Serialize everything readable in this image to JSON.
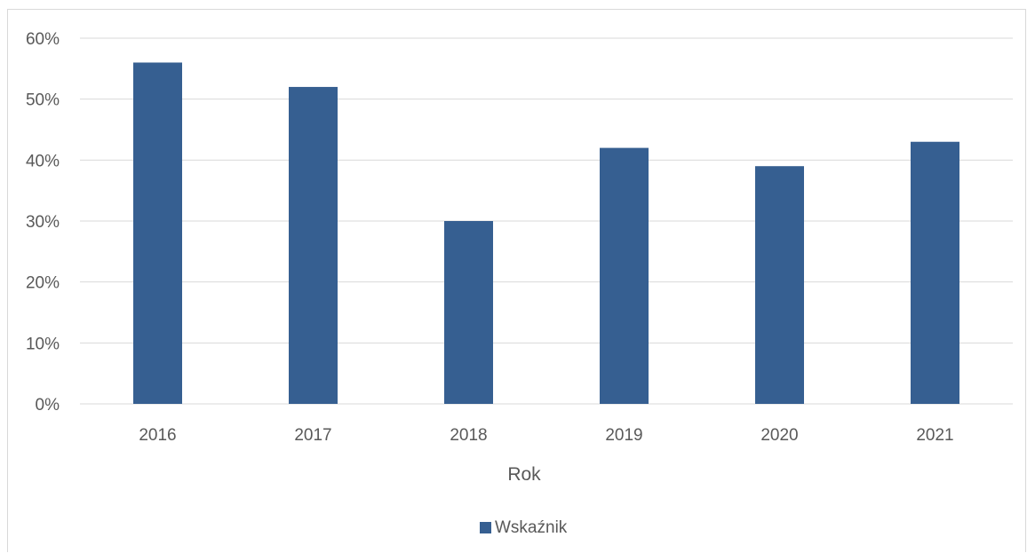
{
  "chart_data": {
    "type": "bar",
    "categories": [
      "2016",
      "2017",
      "2018",
      "2019",
      "2020",
      "2021"
    ],
    "series": [
      {
        "name": "Wskaźnik",
        "values": [
          0.56,
          0.52,
          0.3,
          0.42,
          0.39,
          0.43
        ],
        "color": "#365f91"
      }
    ],
    "xlabel": "Rok",
    "ylabel": "",
    "ylim": [
      0,
      0.6
    ],
    "yticks": [
      0,
      0.1,
      0.2,
      0.3,
      0.4,
      0.5,
      0.6
    ],
    "ytick_labels": [
      "0%",
      "10%",
      "20%",
      "30%",
      "40%",
      "50%",
      "60%"
    ],
    "grid": true,
    "legend_position": "bottom",
    "colors": {
      "grid": "#d9d9d9",
      "text": "#595959",
      "border": "#d9d9d9"
    }
  }
}
